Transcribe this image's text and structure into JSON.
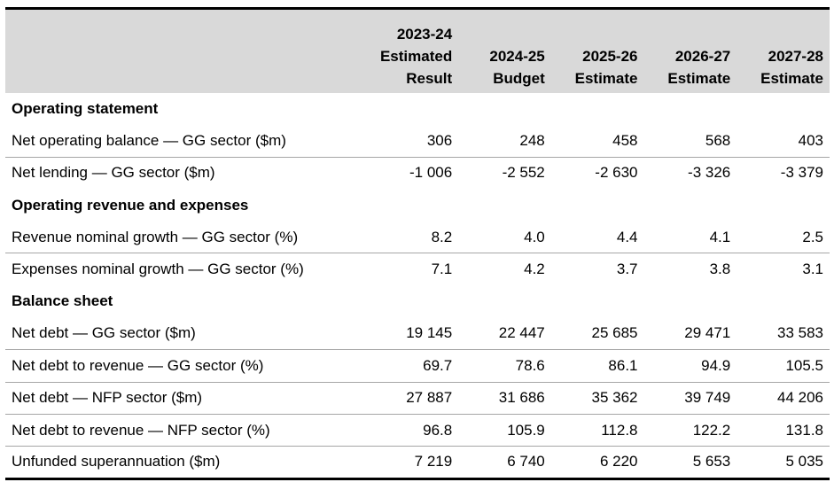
{
  "columns": [
    [
      "2023-24",
      "Estimated",
      "Result"
    ],
    [
      "2024-25",
      "Budget"
    ],
    [
      "2025-26",
      "Estimate"
    ],
    [
      "2026-27",
      "Estimate"
    ],
    [
      "2027-28",
      "Estimate"
    ]
  ],
  "sections": [
    {
      "title": "Operating statement",
      "rows": [
        {
          "label": "Net operating balance — GG sector ($m)",
          "values": [
            "306",
            "248",
            "458",
            "568",
            "403"
          ]
        },
        {
          "label": "Net lending — GG sector ($m)",
          "values": [
            "-1 006",
            "-2 552",
            "-2 630",
            "-3 326",
            "-3 379"
          ]
        }
      ]
    },
    {
      "title": "Operating revenue and expenses",
      "rows": [
        {
          "label": "Revenue nominal growth — GG sector (%)",
          "values": [
            "8.2",
            "4.0",
            "4.4",
            "4.1",
            "2.5"
          ]
        },
        {
          "label": "Expenses nominal growth — GG sector (%)",
          "values": [
            "7.1",
            "4.2",
            "3.7",
            "3.8",
            "3.1"
          ]
        }
      ]
    },
    {
      "title": "Balance sheet",
      "rows": [
        {
          "label": "Net debt — GG sector ($m)",
          "values": [
            "19 145",
            "22 447",
            "25 685",
            "29 471",
            "33 583"
          ]
        },
        {
          "label": "Net debt to revenue — GG sector (%)",
          "values": [
            "69.7",
            "78.6",
            "86.1",
            "94.9",
            "105.5"
          ]
        },
        {
          "label": "Net debt — NFP sector ($m)",
          "values": [
            "27 887",
            "31 686",
            "35 362",
            "39 749",
            "44 206"
          ]
        },
        {
          "label": "Net debt to revenue — NFP sector (%)",
          "values": [
            "96.8",
            "105.9",
            "112.8",
            "122.2",
            "131.8"
          ]
        },
        {
          "label": "Unfunded superannuation ($m)",
          "values": [
            "7 219",
            "6 740",
            "6 220",
            "5 653",
            "5 035"
          ]
        }
      ]
    }
  ]
}
